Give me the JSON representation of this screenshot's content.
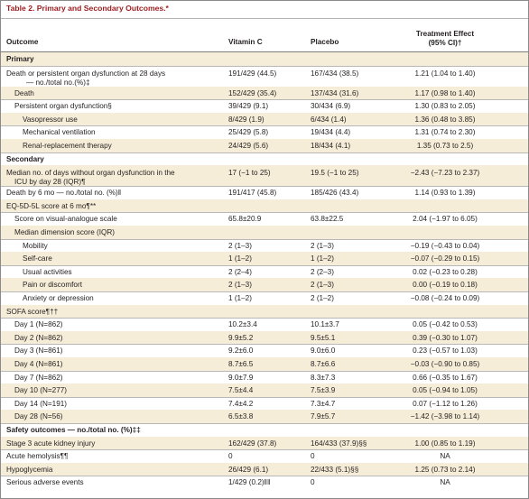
{
  "title": "Table 2. Primary and Secondary Outcomes.*",
  "header": {
    "outcome": "Outcome",
    "vitamin_c": "Vitamin C",
    "placebo": "Placebo",
    "treatment_effect_line1": "Treatment Effect",
    "treatment_effect_line2": "(95% CI)†"
  },
  "rows": [
    {
      "label": "Primary",
      "indent": 0,
      "section": true,
      "vc": "",
      "pl": "",
      "te": ""
    },
    {
      "label": "Death or persistent organ dysfunction at 28 days",
      "label2": "— no./total no.(%)‡",
      "indent": 0,
      "vc": "191/429 (44.5)",
      "pl": "167/434 (38.5)",
      "te": "1.21 (1.04 to 1.40)"
    },
    {
      "label": "Death",
      "indent": 1,
      "vc": "152/429 (35.4)",
      "pl": "137/434 (31.6)",
      "te": "1.17 (0.98 to 1.40)"
    },
    {
      "label": "Persistent organ dysfunction§",
      "indent": 1,
      "vc": "39/429 (9.1)",
      "pl": "30/434 (6.9)",
      "te": "1.30 (0.83 to 2.05)"
    },
    {
      "label": "Vasopressor use",
      "indent": 2,
      "vc": "8/429 (1.9)",
      "pl": "6/434 (1.4)",
      "te": "1.36 (0.48 to 3.85)"
    },
    {
      "label": "Mechanical ventilation",
      "indent": 2,
      "vc": "25/429 (5.8)",
      "pl": "19/434 (4.4)",
      "te": "1.31 (0.74 to 2.30)"
    },
    {
      "label": "Renal-replacement therapy",
      "indent": 2,
      "vc": "24/429 (5.6)",
      "pl": "18/434 (4.1)",
      "te": "1.35 (0.73 to 2.5)"
    },
    {
      "label": "Secondary",
      "indent": 0,
      "section": true,
      "vc": "",
      "pl": "",
      "te": ""
    },
    {
      "label": "Median no. of days without organ dysfunction in the",
      "label2": "ICU by day 28 (IQR)¶",
      "indent": 0,
      "vc": "17 (−1 to 25)",
      "pl": "19.5 (−1 to 25)",
      "te": "−2.43 (−7.23 to 2.37)"
    },
    {
      "label": "Death by 6 mo — no./total no. (%)‖",
      "indent": 0,
      "vc": "191/417 (45.8)",
      "pl": "185/426 (43.4)",
      "te": "1.14 (0.93 to 1.39)"
    },
    {
      "label": "EQ-5D-5L score at 6 mo¶**",
      "indent": 0,
      "vc": "",
      "pl": "",
      "te": ""
    },
    {
      "label": "Score on visual-analogue scale",
      "indent": 1,
      "vc": "65.8±20.9",
      "pl": "63.8±22.5",
      "te": "2.04 (−1.97 to 6.05)"
    },
    {
      "label": "Median dimension score (IQR)",
      "indent": 1,
      "vc": "",
      "pl": "",
      "te": ""
    },
    {
      "label": "Mobility",
      "indent": 2,
      "vc": "2 (1–3)",
      "pl": "2 (1–3)",
      "te": "−0.19 (−0.43 to 0.04)"
    },
    {
      "label": "Self-care",
      "indent": 2,
      "vc": "1 (1–2)",
      "pl": "1 (1–2)",
      "te": "−0.07 (−0.29 to 0.15)"
    },
    {
      "label": "Usual activities",
      "indent": 2,
      "vc": "2 (2–4)",
      "pl": "2 (2–3)",
      "te": "0.02 (−0.23 to 0.28)"
    },
    {
      "label": "Pain or discomfort",
      "indent": 2,
      "vc": "2 (1–3)",
      "pl": "2 (1–3)",
      "te": "0.00 (−0.19 to 0.18)"
    },
    {
      "label": "Anxiety or depression",
      "indent": 2,
      "vc": "1 (1–2)",
      "pl": "2 (1–2)",
      "te": "−0.08 (−0.24 to 0.09)"
    },
    {
      "label": "SOFA score¶††",
      "indent": 0,
      "vc": "",
      "pl": "",
      "te": ""
    },
    {
      "label": "Day 1 (N=862)",
      "indent": 1,
      "vc": "10.2±3.4",
      "pl": "10.1±3.7",
      "te": "0.05 (−0.42 to 0.53)"
    },
    {
      "label": "Day 2 (N=862)",
      "indent": 1,
      "vc": "9.9±5.2",
      "pl": "9.5±5.1",
      "te": "0.39 (−0.30 to 1.07)"
    },
    {
      "label": "Day 3 (N=861)",
      "indent": 1,
      "vc": "9.2±6.0",
      "pl": "9.0±6.0",
      "te": "0.23 (−0.57 to 1.03)"
    },
    {
      "label": "Day 4 (N=861)",
      "indent": 1,
      "vc": "8.7±6.5",
      "pl": "8.7±6.6",
      "te": "−0.03 (−0.90 to 0.85)"
    },
    {
      "label": "Day 7 (N=862)",
      "indent": 1,
      "vc": "9.0±7.9",
      "pl": "8.3±7.3",
      "te": "0.66 (−0.35 to 1.67)"
    },
    {
      "label": "Day 10 (N=277)",
      "indent": 1,
      "vc": "7.5±4.4",
      "pl": "7.5±3.9",
      "te": "0.05 (−0.94 to 1.05)"
    },
    {
      "label": "Day 14 (N=191)",
      "indent": 1,
      "vc": "7.4±4.2",
      "pl": "7.3±4.7",
      "te": "0.07 (−1.12 to 1.26)"
    },
    {
      "label": "Day 28 (N=56)",
      "indent": 1,
      "vc": "6.5±3.8",
      "pl": "7.9±5.7",
      "te": "−1.42 (−3.98 to 1.14)"
    },
    {
      "label": "Safety outcomes — no./total no. (%)‡‡",
      "indent": 0,
      "section": true,
      "vc": "",
      "pl": "",
      "te": ""
    },
    {
      "label": "Stage 3 acute kidney injury",
      "indent": 0,
      "vc": "162/429 (37.8)",
      "pl": "164/433 (37.9)§§",
      "te": "1.00 (0.85 to 1.19)"
    },
    {
      "label": "Acute hemolysis¶¶",
      "indent": 0,
      "vc": "0",
      "pl": "0",
      "te": "NA"
    },
    {
      "label": "Hypoglycemia",
      "indent": 0,
      "vc": "26/429 (6.1)",
      "pl": "22/433 (5.1)§§",
      "te": "1.25 (0.73 to 2.14)"
    },
    {
      "label": "Serious adverse events",
      "indent": 0,
      "vc": "1/429 (0.2)‖‖",
      "pl": "0",
      "te": "NA"
    }
  ]
}
